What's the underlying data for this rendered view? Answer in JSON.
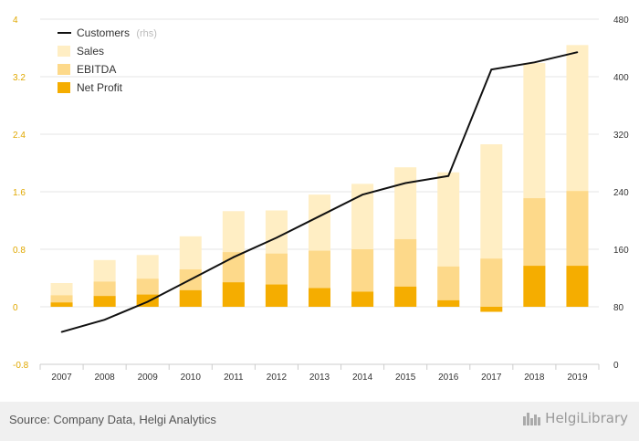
{
  "chart_data": {
    "type": "bar",
    "categories": [
      "2007",
      "2008",
      "2009",
      "2010",
      "2011",
      "2012",
      "2013",
      "2014",
      "2015",
      "2016",
      "2017",
      "2018",
      "2019"
    ],
    "series": [
      {
        "name": "Sales",
        "axis": "left",
        "color": "#ffeec4",
        "values": [
          0.33,
          0.65,
          0.72,
          0.98,
          1.33,
          1.34,
          1.56,
          1.71,
          1.94,
          1.87,
          2.26,
          3.39,
          3.64
        ]
      },
      {
        "name": "EBITDA",
        "axis": "left",
        "color": "#fdd98a",
        "values": [
          0.16,
          0.35,
          0.39,
          0.52,
          0.76,
          0.74,
          0.78,
          0.8,
          0.94,
          0.56,
          0.67,
          1.51,
          1.61
        ]
      },
      {
        "name": "Net Profit",
        "axis": "left",
        "color": "#f5ad00",
        "values": [
          0.06,
          0.15,
          0.17,
          0.23,
          0.34,
          0.31,
          0.26,
          0.21,
          0.28,
          0.09,
          -0.07,
          0.57,
          0.57
        ]
      },
      {
        "name": "Customers",
        "axis": "right",
        "color": "#111111",
        "type": "line",
        "values": [
          45,
          62,
          87,
          118,
          149,
          176,
          206,
          236,
          252,
          262,
          410,
          420,
          434
        ]
      }
    ],
    "legend_labels": {
      "customers": "Customers",
      "rhs": "(rhs)",
      "sales": "Sales",
      "ebitda": "EBITDA",
      "net_profit": "Net Profit"
    },
    "yleft": {
      "min": -0.8,
      "max": 4,
      "ticks": [
        "-0.8",
        "0",
        "0.8",
        "1.6",
        "2.4",
        "3.2",
        "4"
      ]
    },
    "yright": {
      "min": 0,
      "max": 480,
      "ticks": [
        "0",
        "80",
        "160",
        "240",
        "320",
        "400",
        "480"
      ]
    },
    "grid": true,
    "legend_position": "top-left"
  },
  "footer": {
    "source": "Source: Company Data, Helgi Analytics",
    "brand": "HelgiLibrary"
  }
}
